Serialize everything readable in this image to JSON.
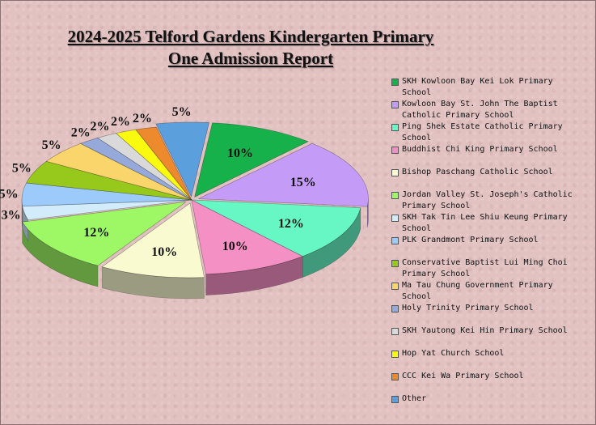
{
  "chart_data": {
    "type": "pie",
    "title": "2024-2025 Telford Gardens Kindergarten Primary",
    "subtitle": "One Admission Report",
    "legend_position": "right",
    "categories": [
      "SKH Kowloon Bay Kei Lok Primary School",
      "Kowloon Bay St. John The Baptist Catholic Primary School",
      "Ping Shek Estate Catholic Primary School",
      "Buddhist Chi King Primary School",
      "Bishop Paschang Catholic School",
      "Jordan Valley St. Joseph's Catholic Primary School",
      "SKH Tak Tin Lee Shiu Keung Primary School",
      "PLK Grandmont Primary School",
      "Conservative Baptist Lui Ming Choi Primary School",
      "Ma Tau Chung Government Primary School",
      "Holy Trinity Primary School",
      "SKH Yautong Kei Hin Primary School",
      "Hop Yat Church School",
      "CCC Kei Wa Primary School",
      "Other"
    ],
    "values": [
      10,
      15,
      12,
      10,
      10,
      12,
      3,
      5,
      5,
      5,
      2,
      2,
      2,
      2,
      5
    ],
    "labels": [
      "10%",
      "15%",
      "12%",
      "10%",
      "10%",
      "12%",
      "3%",
      "5%",
      "5%",
      "5%",
      "2%",
      "2%",
      "2%",
      "2%",
      "5%"
    ],
    "colors": [
      "#17b14b",
      "#c49cf7",
      "#67f7c4",
      "#f590c4",
      "#fafad0",
      "#9ef765",
      "#d3ecfb",
      "#9ccbfb",
      "#96c91b",
      "#fad56b",
      "#95aadb",
      "#d9d9d9",
      "#fafa0f",
      "#ec8a2d",
      "#5b9fdc"
    ]
  }
}
